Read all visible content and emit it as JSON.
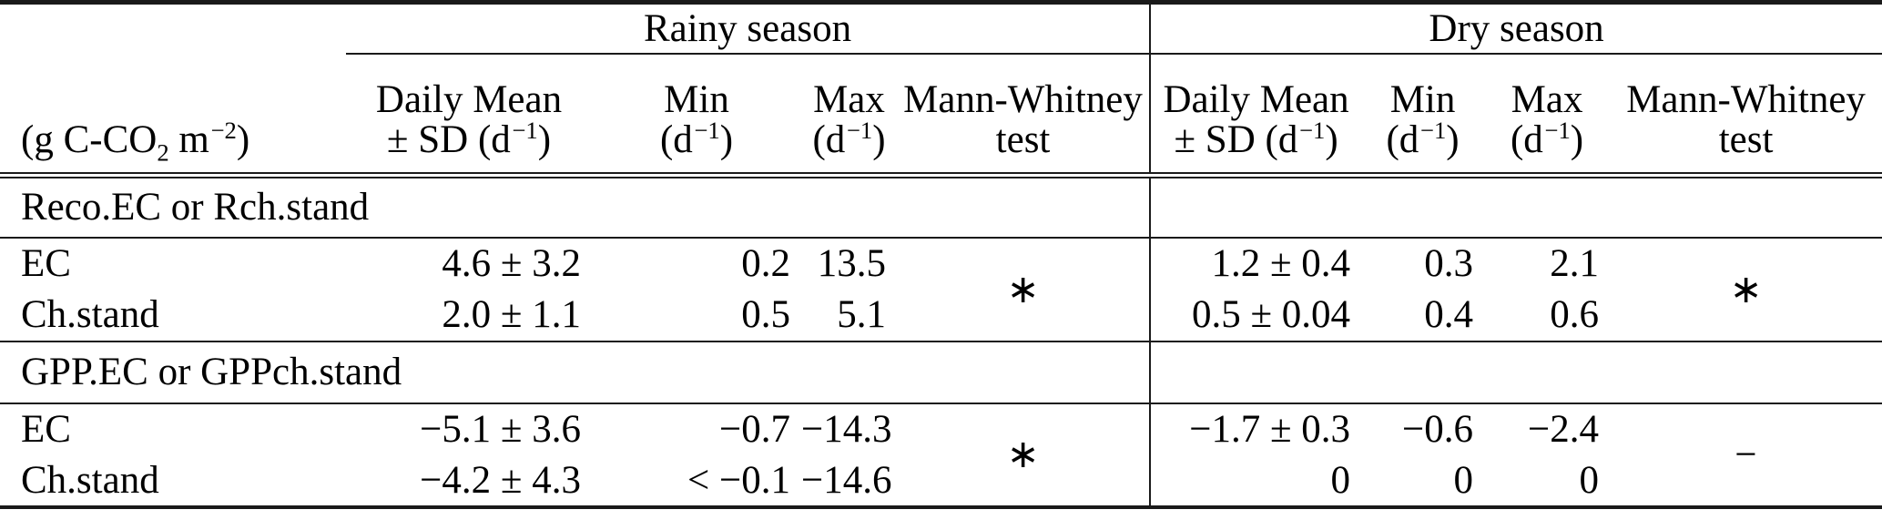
{
  "page": {
    "background_color": "#ffffff",
    "text_color": "#000000",
    "rule_color": "#1a1a1a"
  },
  "header": {
    "unit": {
      "p1": "(g C-CO",
      "sub2": "2",
      "p2": " m",
      "sup": "−2",
      "p3": ")"
    },
    "seasons": [
      {
        "label": "Rainy season"
      },
      {
        "label": "Dry season"
      }
    ],
    "cols": [
      {
        "l1": "Daily Mean",
        "l2a": "± SD (d",
        "l2sup": "−1",
        "l2b": ")"
      },
      {
        "l1": "Min",
        "l2a": "(d",
        "l2sup": "−1",
        "l2b": ")"
      },
      {
        "l1": "Max",
        "l2a": "(d",
        "l2sup": "−1",
        "l2b": ")"
      },
      {
        "l1": "Mann-Whitney",
        "l2a": "test",
        "l2sup": "",
        "l2b": ""
      }
    ]
  },
  "sections": [
    {
      "title": "Reco.EC or Rch.stand",
      "mw_rainy": "∗",
      "mw_dry": "∗",
      "rows": [
        {
          "label": "EC",
          "rainy": [
            "4.6 ± 3.2",
            "0.2",
            "13.5"
          ],
          "dry": [
            "1.2 ± 0.4",
            "0.3",
            "2.1"
          ]
        },
        {
          "label": "Ch.stand",
          "rainy": [
            "2.0 ± 1.1",
            "0.5",
            "5.1"
          ],
          "dry": [
            "0.5 ± 0.04",
            "0.4",
            "0.6"
          ]
        }
      ]
    },
    {
      "title": "GPP.EC or GPPch.stand",
      "mw_rainy": "∗",
      "mw_dry": "−",
      "rows": [
        {
          "label": "EC",
          "rainy": [
            "−5.1 ± 3.6",
            "−0.7",
            "−14.3"
          ],
          "dry": [
            "−1.7 ± 0.3",
            "−0.6",
            "−2.4"
          ]
        },
        {
          "label": "Ch.stand",
          "rainy": [
            "−4.2 ± 4.3",
            "< −0.1",
            "−14.6"
          ],
          "dry": [
            "0",
            "0",
            "0"
          ]
        }
      ]
    }
  ]
}
